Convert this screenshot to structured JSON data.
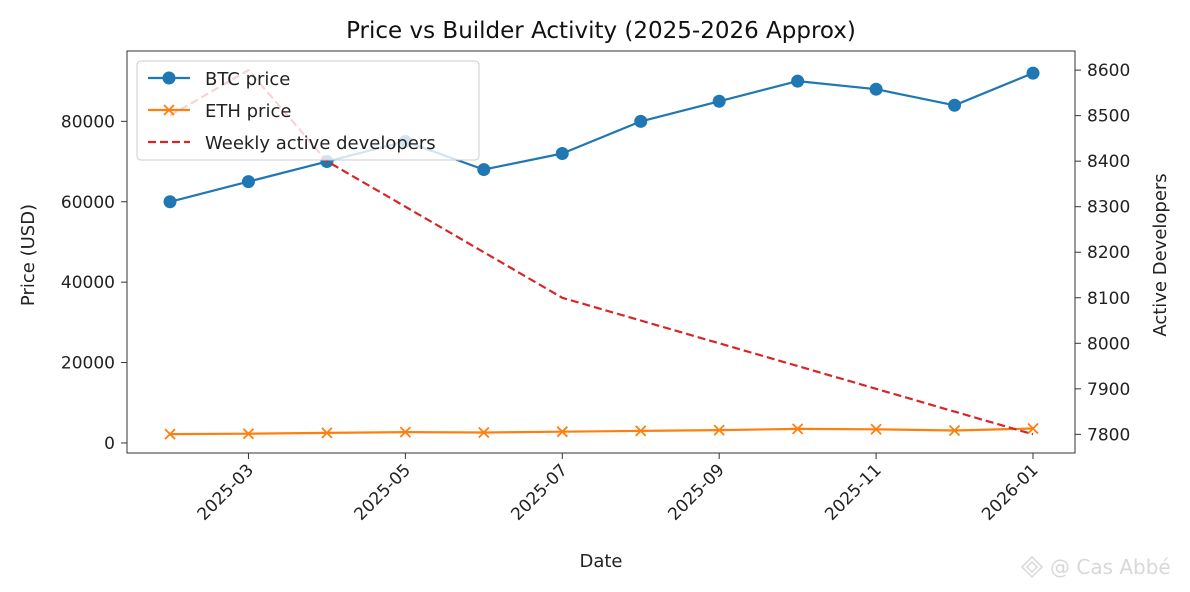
{
  "chart_data": {
    "type": "line",
    "title": "Price vs Builder Activity (2025-2026 Approx)",
    "xlabel": "Date",
    "ylabel_left": "Price (USD)",
    "ylabel_right": "Active Developers",
    "x": [
      "2025-02",
      "2025-03",
      "2025-04",
      "2025-05",
      "2025-06",
      "2025-07",
      "2025-08",
      "2025-09",
      "2025-10",
      "2025-11",
      "2025-12",
      "2026-01"
    ],
    "x_ticks": [
      "2025-03",
      "2025-05",
      "2025-07",
      "2025-09",
      "2025-11",
      "2026-01"
    ],
    "y_left_ticks": [
      0,
      20000,
      40000,
      60000,
      80000
    ],
    "y_left_ticks_text": [
      "0",
      "20000",
      "40000",
      "60000",
      "80000"
    ],
    "y_left_lim": [
      -2500,
      97500
    ],
    "y_right_ticks": [
      7800,
      7900,
      8000,
      8100,
      8200,
      8300,
      8400,
      8500,
      8600
    ],
    "y_right_ticks_text": [
      "7800",
      "7900",
      "8000",
      "8100",
      "8200",
      "8300",
      "8400",
      "8500",
      "8600"
    ],
    "y_right_lim": [
      7759,
      8642
    ],
    "legend_position": "top-left",
    "grid": false,
    "series": [
      {
        "name": "BTC price",
        "axis": "left",
        "style": "solid",
        "marker": "circle",
        "color": "#1f77b4",
        "values": [
          60000,
          65000,
          70000,
          75000,
          68000,
          72000,
          80000,
          85000,
          90000,
          88000,
          84000,
          92000
        ]
      },
      {
        "name": "ETH price",
        "axis": "left",
        "style": "solid",
        "marker": "x",
        "color": "#ff7f0e",
        "values": [
          2200,
          2300,
          2500,
          2700,
          2600,
          2800,
          3000,
          3200,
          3500,
          3400,
          3100,
          3600
        ]
      },
      {
        "name": "Weekly active developers",
        "axis": "right",
        "style": "dashed",
        "marker": "none",
        "color": "#d62728",
        "values": [
          8500,
          8600,
          8400,
          8300,
          8200,
          8100,
          8050,
          8000,
          7950,
          7900,
          7850,
          7800
        ]
      }
    ]
  },
  "watermark": {
    "text": "@ Cas Abbé",
    "icon": "binance-diamond-icon"
  }
}
